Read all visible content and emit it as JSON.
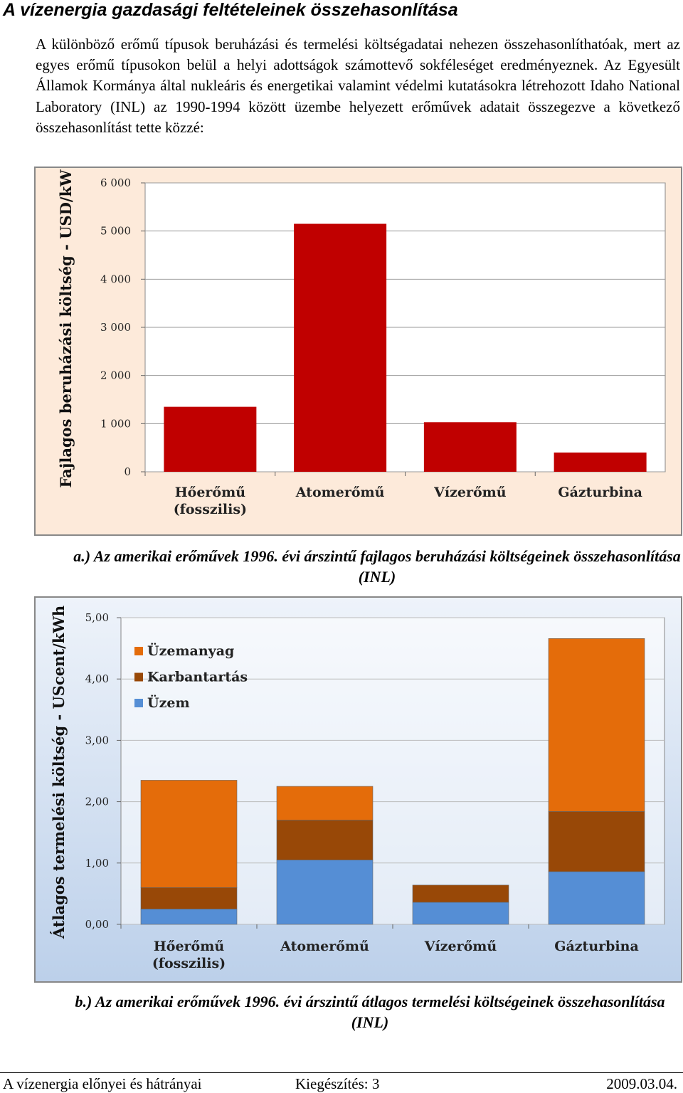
{
  "title": "A vízenergia gazdasági feltételeinek összehasonlítása",
  "paragraph": "A különböző erőmű típusok beruházási és termelési költségadatai nehezen összehasonlíthatóak, mert az egyes erőmű típusokon belül a helyi adottságok számottevő sokféleséget eredményeznek. Az Egyesült Államok Kormánya által nukleáris és energetikai valamint védelmi kutatásokra létrehozott Idaho National Laboratory (INL) az 1990-1994 között üzembe helyezett erőművek adatait összegezve a következő összehasonlítást tette közzé:",
  "chart_data": [
    {
      "type": "bar",
      "y_label": "Fajlagos beruházási költség - USD/kW",
      "categories": [
        "Hőerőmű\n(fosszilis)",
        "Atomerőmű",
        "Vízerőmű",
        "Gázturbina"
      ],
      "values": [
        1350,
        5150,
        1030,
        400
      ],
      "color": "#c00000",
      "ylim": [
        0,
        6000
      ],
      "yticks": [
        0,
        {
          "value": 1000,
          "label": "1 000"
        },
        {
          "value": 2000,
          "label": "2 000"
        },
        {
          "value": 3000,
          "label": "3 000"
        },
        {
          "value": 4000,
          "label": "4 000"
        },
        {
          "value": 5000,
          "label": "5 000"
        },
        {
          "value": 6000,
          "label": "6 000"
        }
      ],
      "grid": true,
      "caption": "a.) Az amerikai erőművek 1996. évi árszintű fajlagos beruházási költségeinek összehasonlítása (INL)"
    },
    {
      "type": "stacked_bar",
      "y_label": "Átlagos termelési költség - UScent/kWh",
      "categories": [
        "Hőerőmű (fosszilis)",
        "Atomerőmű",
        "Vízerőmű",
        "Gázturbina"
      ],
      "series": [
        {
          "name": "Üzem",
          "color": "#558ed5",
          "values": [
            0.25,
            1.05,
            0.36,
            0.86
          ]
        },
        {
          "name": "Karbantartás",
          "color": "#984807",
          "values": [
            0.35,
            0.65,
            0.28,
            0.98
          ]
        },
        {
          "name": "Üzemanyag",
          "color": "#e46c0a",
          "values": [
            1.75,
            0.55,
            0,
            2.82
          ]
        }
      ],
      "ylim": [
        0,
        5
      ],
      "yticks": [
        {
          "value": 0,
          "label": "0,00"
        },
        {
          "value": 1,
          "label": "1,00"
        },
        {
          "value": 2,
          "label": "2,00"
        },
        {
          "value": 3,
          "label": "3,00"
        },
        {
          "value": 4,
          "label": "4,00"
        },
        {
          "value": 5,
          "label": "5,00"
        }
      ],
      "grid": true,
      "legend": "top-left",
      "caption": "b.) Az amerikai erőművek 1996. évi árszintű átlagos termelési költségeinek összehasonlítása (INL)"
    }
  ],
  "footer": {
    "left": "A vízenergia előnyei és hátrányai",
    "center": "Kiegészítés: 3",
    "right": "2009.03.04."
  }
}
